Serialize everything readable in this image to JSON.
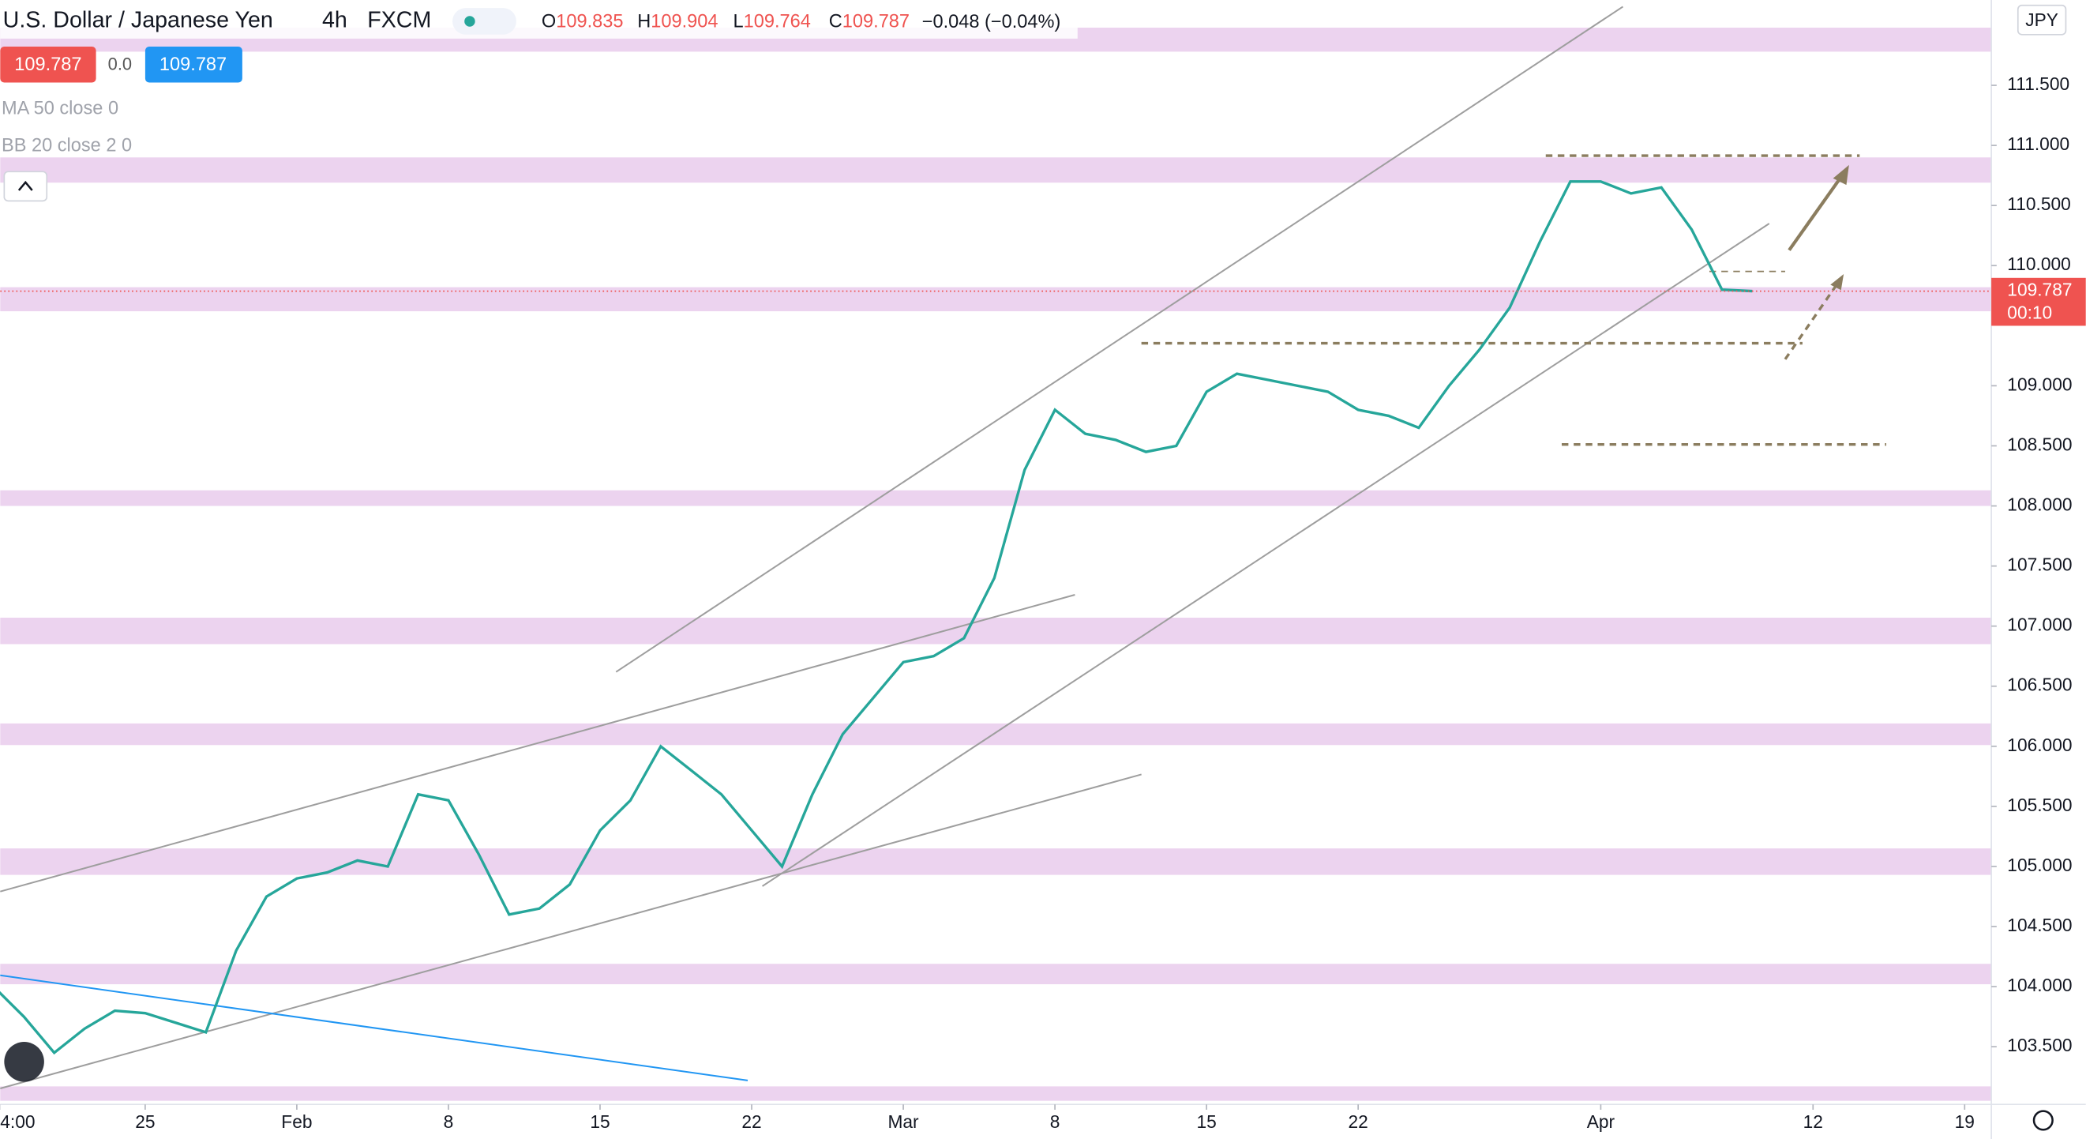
{
  "header": {
    "symbol": "U.S. Dollar / Japanese Yen",
    "interval": "4h",
    "exchange": "FXCM",
    "ohlc": [
      {
        "label": "O",
        "value": "109.835"
      },
      {
        "label": "H",
        "value": "109.904"
      },
      {
        "label": "L",
        "value": "109.764"
      },
      {
        "label": "C",
        "value": "109.787"
      }
    ],
    "change": "−0.048 (−0.04%)",
    "sell": "109.787",
    "spread": "0.0",
    "buy": "109.787",
    "indicators": [
      "MA 50 close 0",
      "BB 20 close 2 0"
    ]
  },
  "chart_data": {
    "type": "line",
    "currency": "JPY",
    "x": [
      -5,
      -4,
      -3,
      -2,
      -1,
      0,
      1,
      2,
      3,
      4,
      5,
      6,
      7,
      8,
      9,
      10,
      11,
      12,
      13,
      14,
      15,
      16,
      17,
      18,
      19,
      20,
      21,
      22,
      23,
      24,
      25,
      26,
      27,
      28,
      29,
      30,
      31,
      32,
      33,
      34,
      35,
      36,
      37,
      38,
      39,
      40,
      41,
      42,
      43,
      44,
      45,
      46,
      47,
      48,
      49,
      50,
      51,
      52,
      53
    ],
    "series": [
      {
        "color": "#26a69a",
        "values": [
          104.0,
          103.75,
          103.45,
          103.65,
          103.8,
          103.78,
          103.7,
          103.62,
          104.3,
          104.75,
          104.9,
          104.95,
          105.05,
          105.0,
          105.6,
          105.55,
          105.1,
          104.6,
          104.65,
          104.85,
          105.3,
          105.55,
          106.0,
          105.8,
          105.6,
          105.3,
          105.0,
          105.6,
          106.1,
          106.4,
          106.7,
          106.75,
          106.9,
          107.4,
          108.3,
          108.8,
          108.6,
          108.55,
          108.45,
          108.5,
          108.95,
          109.1,
          109.05,
          109.0,
          108.95,
          108.8,
          108.75,
          108.65,
          109.0,
          109.3,
          109.65,
          110.2,
          110.7,
          110.7,
          110.6,
          110.65,
          110.3,
          109.8,
          109.787
        ]
      }
    ],
    "xlim": [
      -4.78,
      60.88
    ],
    "ylim": [
      103.02,
      112.21
    ],
    "xticks": [
      {
        "value": -4.8,
        "label": "4:00"
      },
      {
        "value": 0,
        "label": "25"
      },
      {
        "value": 5,
        "label": "Feb"
      },
      {
        "value": 10,
        "label": "8"
      },
      {
        "value": 15,
        "label": "15"
      },
      {
        "value": 20,
        "label": "22"
      },
      {
        "value": 25,
        "label": "Mar"
      },
      {
        "value": 30,
        "label": "8"
      },
      {
        "value": 35,
        "label": "15"
      },
      {
        "value": 40,
        "label": "22"
      },
      {
        "value": 48,
        "label": "Apr"
      },
      {
        "value": 55,
        "label": "12"
      },
      {
        "value": 60,
        "label": "19"
      }
    ],
    "yticks": [
      {
        "value": 103.5,
        "label": "103.500"
      },
      {
        "value": 104,
        "label": "104.000"
      },
      {
        "value": 104.5,
        "label": "104.500"
      },
      {
        "value": 105,
        "label": "105.000"
      },
      {
        "value": 105.5,
        "label": "105.500"
      },
      {
        "value": 106,
        "label": "106.000"
      },
      {
        "value": 106.5,
        "label": "106.500"
      },
      {
        "value": 107,
        "label": "107.000"
      },
      {
        "value": 107.5,
        "label": "107.500"
      },
      {
        "value": 108,
        "label": "108.000"
      },
      {
        "value": 108.5,
        "label": "108.500"
      },
      {
        "value": 109,
        "label": "109.000"
      },
      {
        "value": 110,
        "label": "110.000"
      },
      {
        "value": 110.5,
        "label": "110.500"
      },
      {
        "value": 111,
        "label": "111.000"
      },
      {
        "value": 111.5,
        "label": "111.500"
      }
    ],
    "zones": [
      [
        111.78,
        111.98
      ],
      [
        110.69,
        110.9
      ],
      [
        109.62,
        109.82
      ],
      [
        108.0,
        108.13
      ],
      [
        106.85,
        107.07
      ],
      [
        106.01,
        106.19
      ],
      [
        104.93,
        105.15
      ],
      [
        104.02,
        104.19
      ],
      [
        103.05,
        103.17
      ]
    ],
    "zone_color": "#ecd3ef",
    "last_price": 109.787,
    "countdown": "00:10",
    "last_color": "#ef5350"
  }
}
